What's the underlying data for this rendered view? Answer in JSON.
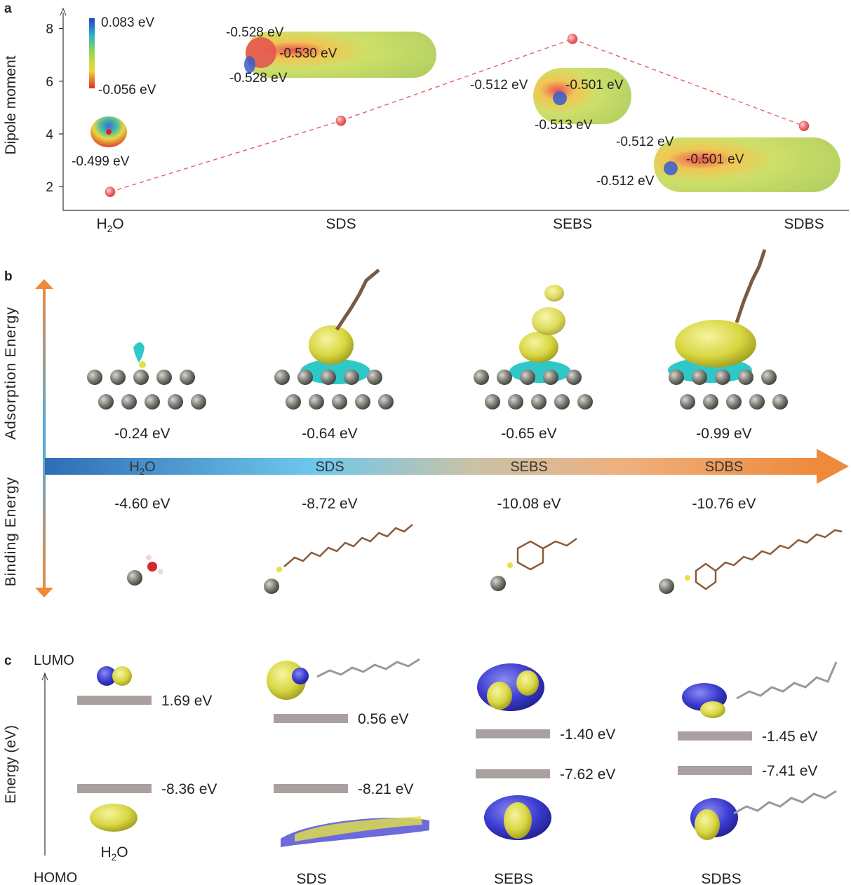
{
  "panels": {
    "a": {
      "letter": "a",
      "chart_data": {
        "type": "scatter",
        "ylabel": "Dipole moment",
        "xlabel": "",
        "ylim": [
          1.1,
          8.6
        ],
        "yticks": [
          "2",
          "4",
          "6",
          "8"
        ],
        "categories": [
          "H2O",
          "SDS",
          "SEBS",
          "SDBS"
        ],
        "category_labels": [
          {
            "base": "H",
            "sub": "2",
            "rest": "O"
          },
          {
            "base": "SDS",
            "sub": "",
            "rest": ""
          },
          {
            "base": "SEBS",
            "sub": "",
            "rest": ""
          },
          {
            "base": "SDBS",
            "sub": "",
            "rest": ""
          }
        ],
        "series": [
          {
            "values": [
              1.8,
              4.5,
              7.6,
              4.3
            ],
            "color": "#ec5a5a",
            "line_style": "dashed"
          }
        ],
        "grid": false
      },
      "colorbar": {
        "max_label": "0.083 eV",
        "min_label": "-0.056 eV"
      },
      "annotations": {
        "h2o": [
          "-0.499 eV"
        ],
        "sds": [
          "-0.528 eV",
          "-0.530 eV",
          "-0.528 eV"
        ],
        "sebs": [
          "-0.512 eV",
          "-0.501 eV",
          "-0.513 eV"
        ],
        "sdbs": [
          "-0.512 eV",
          "-0.501 eV",
          "-0.512 eV"
        ]
      }
    },
    "b": {
      "letter": "b",
      "axis_top": "Adsorption Energy",
      "axis_bottom": "Binding Energy",
      "bands": [
        {
          "base": "H",
          "sub": "2",
          "rest": "O"
        },
        {
          "base": "SDS",
          "sub": "",
          "rest": ""
        },
        {
          "base": "SEBS",
          "sub": "",
          "rest": ""
        },
        {
          "base": "SDBS",
          "sub": "",
          "rest": ""
        }
      ],
      "adsorption_energies": [
        "-0.24 eV",
        "-0.64 eV",
        "-0.65 eV",
        "-0.99 eV"
      ],
      "binding_energies": [
        "-4.60 eV",
        "-8.72 eV",
        "-10.08 eV",
        "-10.76 eV"
      ],
      "colors": {
        "arrow_start": "#2f6db5",
        "arrow_mid": "#6ec8ec",
        "arrow_end": "#ee8a3c",
        "isosurface_yellow": "#e2e04a",
        "isosurface_cyan": "#2ec8c8",
        "surface_atom": "#7e7e78"
      }
    },
    "c": {
      "letter": "c",
      "ylabel": "Energy (eV)",
      "top_label": "LUMO",
      "bottom_label": "HOMO",
      "molecules": [
        {
          "lumo": "1.69 eV",
          "homo": "-8.36 eV",
          "label_base": "H",
          "label_sub": "2",
          "label_rest": "O"
        },
        {
          "lumo": "0.56 eV",
          "homo": "-8.21 eV",
          "label_base": "SDS",
          "label_sub": "",
          "label_rest": ""
        },
        {
          "lumo": "-1.40 eV",
          "homo": "-7.62 eV",
          "label_base": "SEBS",
          "label_sub": "",
          "label_rest": ""
        },
        {
          "lumo": "-1.45 eV",
          "homo": "-7.41 eV",
          "label_base": "SDBS",
          "label_sub": "",
          "label_rest": ""
        }
      ],
      "colors": {
        "level_bar": "#aaa09f",
        "orbital_blue": "#3a3ad0",
        "orbital_yellow": "#e4e246"
      }
    }
  }
}
